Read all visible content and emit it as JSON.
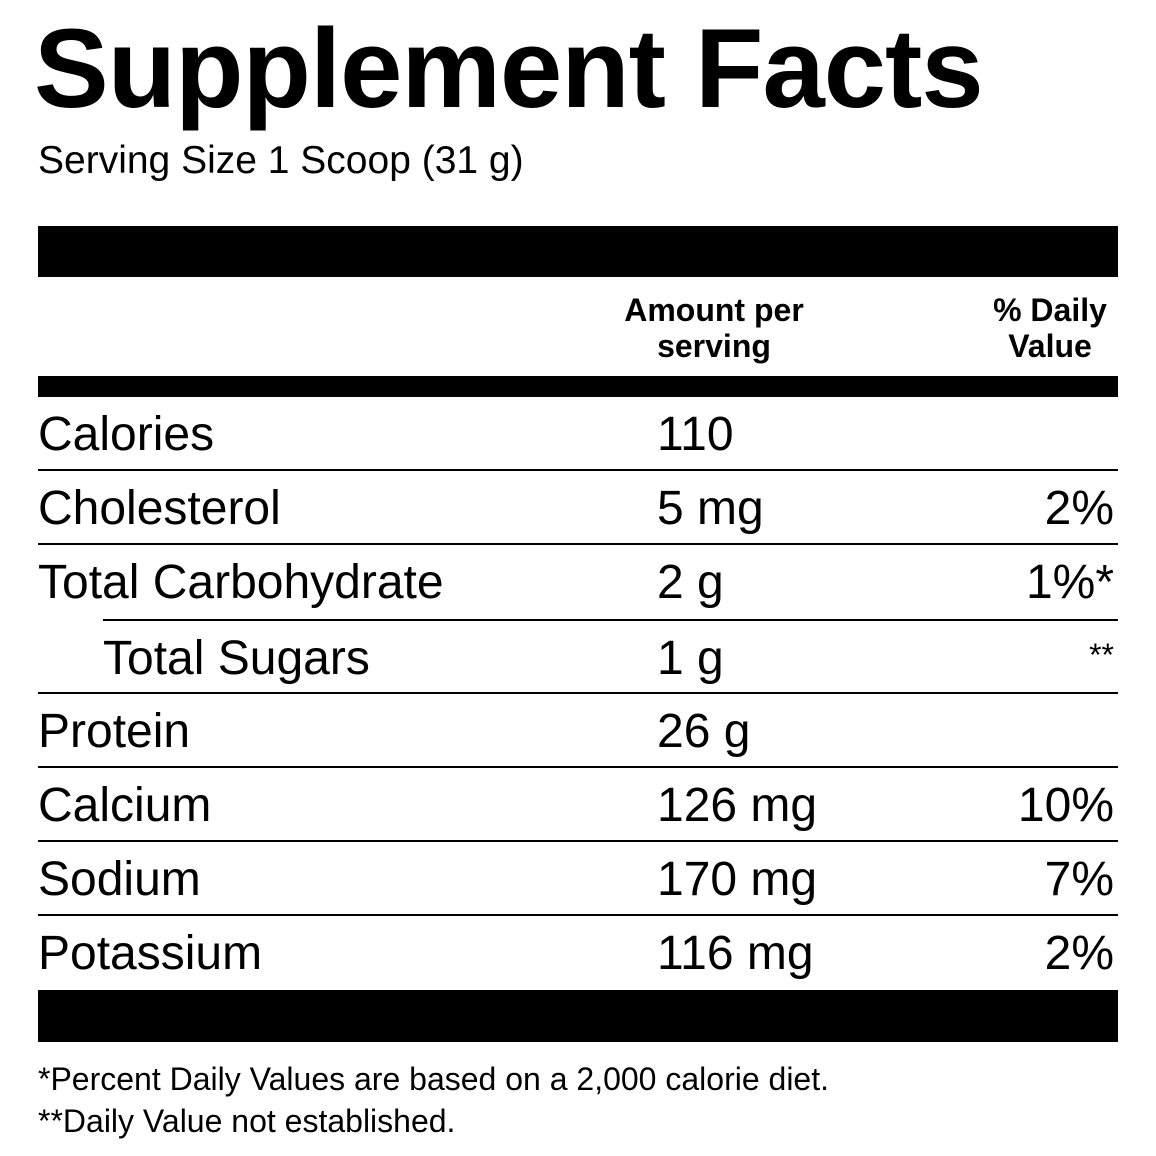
{
  "title": "Supplement Facts",
  "serving_size": "Serving Size 1 Scoop (31 g)",
  "header": {
    "amount": [
      "Amount per",
      "serving"
    ],
    "daily_value": [
      "% Daily",
      "Value"
    ]
  },
  "rows": [
    {
      "name": "Calories",
      "amount": "110",
      "dv": ""
    },
    {
      "name": "Cholesterol",
      "amount": "5 mg",
      "dv": "2%"
    },
    {
      "name": "Total Carbohydrate",
      "amount": "2 g",
      "dv": "1%*"
    },
    {
      "name": "Total Sugars",
      "amount": "1 g",
      "dv": "**"
    },
    {
      "name": "Protein",
      "amount": "26 g",
      "dv": ""
    },
    {
      "name": "Calcium",
      "amount": "126 mg",
      "dv": "10%"
    },
    {
      "name": "Sodium",
      "amount": "170 mg",
      "dv": "7%"
    },
    {
      "name": "Potassium",
      "amount": "116 mg",
      "dv": "2%"
    }
  ],
  "footnotes": [
    "*Percent Daily Values are based on a 2,000 calorie diet.",
    "**Daily Value not established."
  ]
}
